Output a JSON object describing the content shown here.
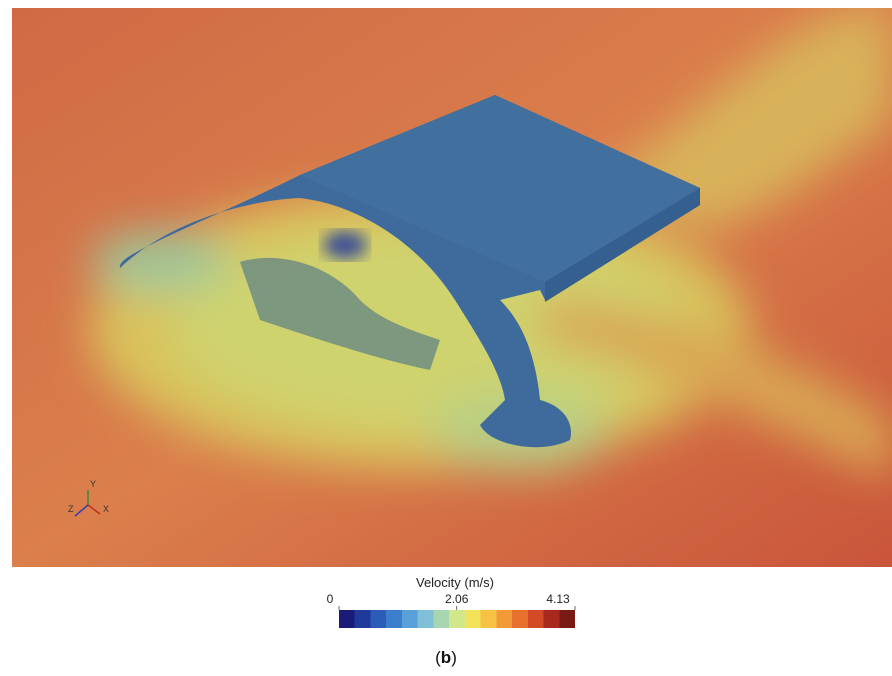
{
  "figure": {
    "axes_gizmo": {
      "y": "Y",
      "z": "Z",
      "x": "X"
    },
    "colorbar": {
      "title": "Velocity (m/s)",
      "lim": [
        0,
        4.13
      ],
      "ticks": [
        0,
        2.06,
        4.13
      ],
      "colors": [
        "#1a1a78",
        "#1f3a9a",
        "#2a5cb8",
        "#3b7fcc",
        "#5aa0d8",
        "#7fbfd8",
        "#a6d6b0",
        "#d2e68a",
        "#f2e25a",
        "#f7c243",
        "#f29a38",
        "#e8702e",
        "#d24a26",
        "#a82a1e",
        "#7a1a14"
      ]
    },
    "caption": "(b)"
  }
}
